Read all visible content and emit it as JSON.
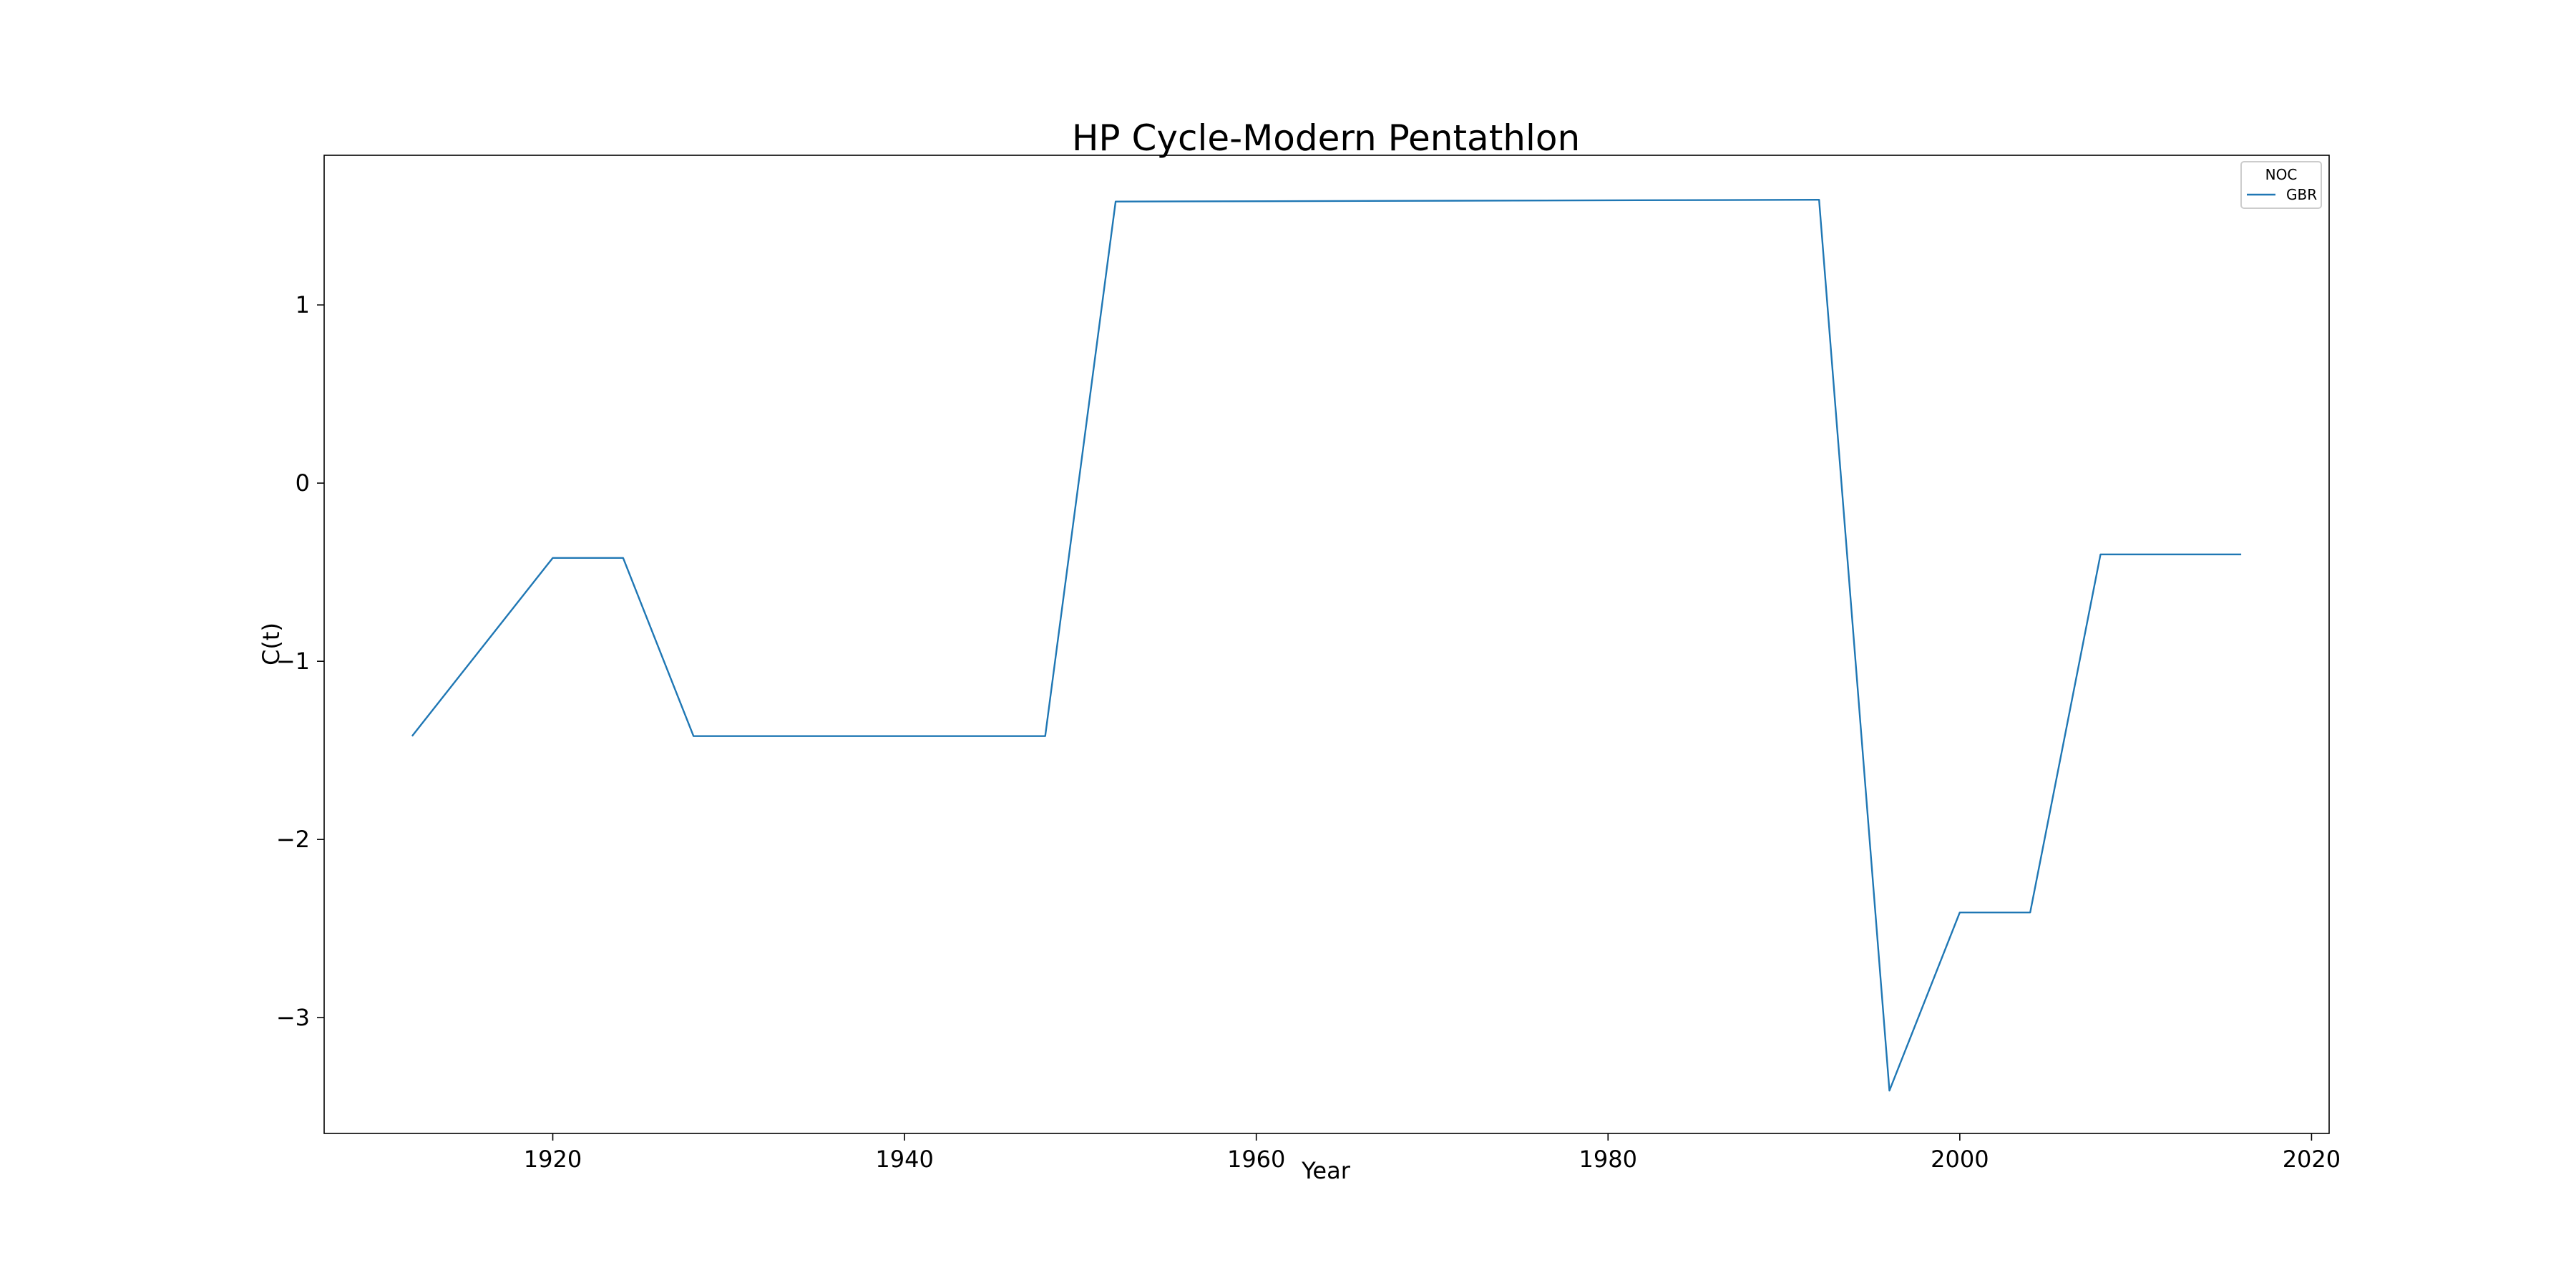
{
  "chart_data": {
    "type": "line",
    "title": "HP Cycle-Modern Pentathlon",
    "xlabel": "Year",
    "ylabel": "C(t)",
    "xlim": [
      1907,
      2021
    ],
    "ylim": [
      -3.65,
      1.84
    ],
    "xticks": [
      1920,
      1940,
      1960,
      1980,
      2000,
      2020
    ],
    "yticks": [
      -3,
      -2,
      -1,
      0,
      1
    ],
    "grid": false,
    "legend": {
      "title": "NOC",
      "placement": "top-right"
    },
    "series": [
      {
        "name": "GBR",
        "color": "#1f77b4",
        "x": [
          1912,
          1920,
          1924,
          1928,
          1948,
          1952,
          1992,
          1996,
          2000,
          2004,
          2008,
          2016
        ],
        "y": [
          -1.42,
          -0.42,
          -0.42,
          -1.42,
          -1.42,
          1.58,
          1.59,
          -3.41,
          -2.41,
          -2.41,
          -0.4,
          -0.4
        ]
      }
    ]
  }
}
